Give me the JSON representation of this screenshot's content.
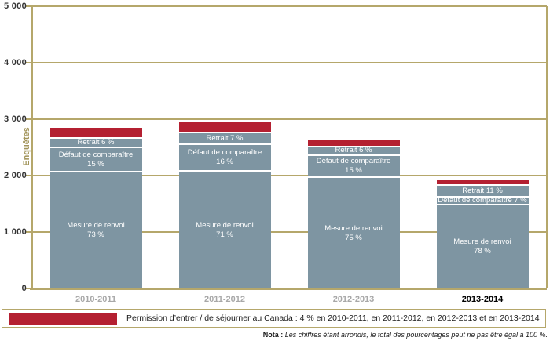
{
  "colors": {
    "accent_red": "#b42031",
    "bar_gray": "#7e95a2",
    "axis_tan": "#b5a76b",
    "xlabel_gray": "#a8a8a8",
    "xlabel_emphasis": "#000000"
  },
  "legend": {
    "swatch_color": "#b42031",
    "text": "Permission d’entrer / de séjourner au Canada : 4 % en 2010-2011, en 2011-2012, en 2012-2013 et en 2013-2014"
  },
  "nota": {
    "prefix": "Nota :",
    "text": " Les chiffres étant arrondis, le total des pourcentages peut ne pas être égal à 100 %."
  },
  "chart_data": {
    "type": "bar",
    "stacked": true,
    "title": "",
    "xlabel": "",
    "ylabel": "Enquêtes",
    "ylim": [
      0,
      5000
    ],
    "grid": true,
    "ytick_values": [
      0,
      1000,
      2000,
      3000,
      4000,
      5000
    ],
    "ytick_labels": [
      "0",
      "1 000",
      "2 000",
      "3 000",
      "4 000",
      "5 000"
    ],
    "categories": [
      "2010-2011",
      "2011-2012",
      "2012-2013",
      "2013-2014"
    ],
    "series_order_bottom_to_top": [
      "Mesure de renvoi",
      "Défaut de comparaître",
      "Retrait",
      "Permission d’entrer / de séjourner au Canada"
    ],
    "estimated_totals": [
      2850,
      2950,
      2640,
      1920
    ],
    "bars": [
      {
        "category": "2010-2011",
        "emphasis": false,
        "estimated_total": 2850,
        "segments": [
          {
            "name": "Mesure de renvoi",
            "percent": 73,
            "color": "#7e95a2",
            "label_lines": [
              "Mesure de renvoi",
              "73 %"
            ]
          },
          {
            "name": "Défaut de comparaître",
            "percent": 15,
            "color": "#7e95a2",
            "label_lines": [
              "Défaut de comparaître",
              "15 %"
            ]
          },
          {
            "name": "Retrait",
            "percent": 6,
            "color": "#7e95a2",
            "label_lines": [
              "Retrait 6 %"
            ]
          },
          {
            "name": "Permission d’entrer / de séjourner au Canada",
            "percent": 4,
            "color": "#b42031",
            "label_lines": []
          }
        ]
      },
      {
        "category": "2011-2012",
        "emphasis": false,
        "estimated_total": 2950,
        "segments": [
          {
            "name": "Mesure de renvoi",
            "percent": 71,
            "color": "#7e95a2",
            "label_lines": [
              "Mesure de renvoi",
              "71 %"
            ]
          },
          {
            "name": "Défaut de comparaître",
            "percent": 16,
            "color": "#7e95a2",
            "label_lines": [
              "Défaut de comparaître",
              "16 %"
            ]
          },
          {
            "name": "Retrait",
            "percent": 7,
            "color": "#7e95a2",
            "label_lines": [
              "Retrait 7 %"
            ]
          },
          {
            "name": "Permission d’entrer / de séjourner au Canada",
            "percent": 4,
            "color": "#b42031",
            "label_lines": []
          }
        ]
      },
      {
        "category": "2012-2013",
        "emphasis": false,
        "estimated_total": 2640,
        "segments": [
          {
            "name": "Mesure de renvoi",
            "percent": 75,
            "color": "#7e95a2",
            "label_lines": [
              "Mesure de renvoi",
              "75 %"
            ]
          },
          {
            "name": "Défaut de comparaître",
            "percent": 15,
            "color": "#7e95a2",
            "label_lines": [
              "Défaut de comparaître",
              "15 %"
            ]
          },
          {
            "name": "Retrait",
            "percent": 6,
            "color": "#7e95a2",
            "label_lines": [
              "Retrait 6 %"
            ]
          },
          {
            "name": "Permission d’entrer / de séjourner au Canada",
            "percent": 4,
            "color": "#b42031",
            "label_lines": []
          }
        ]
      },
      {
        "category": "2013-2014",
        "emphasis": true,
        "estimated_total": 1920,
        "segments": [
          {
            "name": "Mesure de renvoi",
            "percent": 78,
            "color": "#7e95a2",
            "label_lines": [
              "Mesure de renvoi",
              "78 %"
            ]
          },
          {
            "name": "Défaut de comparaître",
            "percent": 7,
            "color": "#7e95a2",
            "label_lines": [
              "Défaut de comparaître 7 %"
            ]
          },
          {
            "name": "Retrait",
            "percent": 11,
            "color": "#7e95a2",
            "label_lines": [
              "Retrait 11 %"
            ]
          },
          {
            "name": "Permission d’entrer / de séjourner au Canada",
            "percent": 4,
            "color": "#b42031",
            "label_lines": []
          }
        ]
      }
    ]
  }
}
